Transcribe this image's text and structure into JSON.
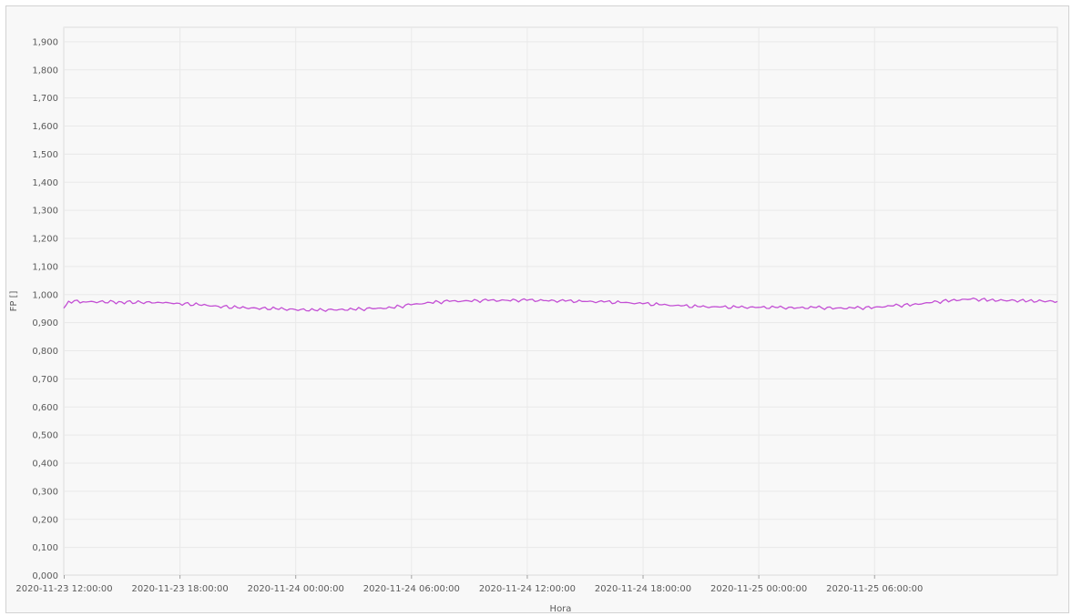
{
  "chart_data": {
    "type": "line",
    "xlabel": "Hora",
    "ylabel": "FP []",
    "ylim": [
      0,
      1.95
    ],
    "y_ticks": [
      "0,000",
      "0,100",
      "0,200",
      "0,300",
      "0,400",
      "0,500",
      "0,600",
      "0,700",
      "0,800",
      "0,900",
      "1,000",
      "1,100",
      "1,200",
      "1,300",
      "1,400",
      "1,500",
      "1,600",
      "1,700",
      "1,800",
      "1,900"
    ],
    "x_ticks": [
      "2020-11-23 12:00:00",
      "2020-11-23 18:00:00",
      "2020-11-24 00:00:00",
      "2020-11-24 06:00:00",
      "2020-11-24 12:00:00",
      "2020-11-24 18:00:00",
      "2020-11-25 00:00:00",
      "2020-11-25 06:00:00"
    ],
    "xlim": [
      "2020-11-23 12:00:00",
      "2020-11-25 15:30:00"
    ],
    "grid": true,
    "colors": {
      "series": "#c34fd4",
      "grid": "#e9e9e9",
      "plot_bg": "#f8f8f8"
    },
    "series": [
      {
        "x": [
          "2020-11-23 12:00:00",
          "2020-11-23 12:15:00",
          "2020-11-23 13:00:00",
          "2020-11-23 15:00:00",
          "2020-11-23 17:00:00",
          "2020-11-23 18:00:00",
          "2020-11-23 19:00:00",
          "2020-11-23 20:00:00",
          "2020-11-23 21:00:00",
          "2020-11-23 22:00:00",
          "2020-11-23 23:00:00",
          "2020-11-24 00:00:00",
          "2020-11-24 01:00:00",
          "2020-11-24 02:00:00",
          "2020-11-24 03:00:00",
          "2020-11-24 04:00:00",
          "2020-11-24 05:00:00",
          "2020-11-24 06:00:00",
          "2020-11-24 07:00:00",
          "2020-11-24 08:00:00",
          "2020-11-24 09:00:00",
          "2020-11-24 10:00:00",
          "2020-11-24 11:00:00",
          "2020-11-24 12:00:00",
          "2020-11-24 13:00:00",
          "2020-11-24 14:00:00",
          "2020-11-24 15:00:00",
          "2020-11-24 16:00:00",
          "2020-11-24 17:00:00",
          "2020-11-24 18:00:00",
          "2020-11-24 19:00:00",
          "2020-11-24 20:00:00",
          "2020-11-24 21:00:00",
          "2020-11-24 22:00:00",
          "2020-11-24 23:00:00",
          "2020-11-25 00:00:00",
          "2020-11-25 01:00:00",
          "2020-11-25 02:00:00",
          "2020-11-25 03:00:00",
          "2020-11-25 04:00:00",
          "2020-11-25 05:00:00",
          "2020-11-25 06:00:00",
          "2020-11-25 07:00:00",
          "2020-11-25 08:00:00",
          "2020-11-25 09:00:00",
          "2020-11-25 10:00:00",
          "2020-11-25 11:00:00",
          "2020-11-25 12:00:00",
          "2020-11-25 13:00:00",
          "2020-11-25 14:00:00",
          "2020-11-25 15:00:00",
          "2020-11-25 15:30:00"
        ],
        "values": [
          0.95,
          0.975,
          0.973,
          0.972,
          0.97,
          0.967,
          0.962,
          0.957,
          0.952,
          0.95,
          0.948,
          0.945,
          0.943,
          0.944,
          0.946,
          0.948,
          0.952,
          0.962,
          0.97,
          0.974,
          0.976,
          0.977,
          0.978,
          0.978,
          0.977,
          0.975,
          0.974,
          0.972,
          0.97,
          0.966,
          0.962,
          0.958,
          0.955,
          0.954,
          0.953,
          0.953,
          0.952,
          0.951,
          0.952,
          0.95,
          0.95,
          0.953,
          0.958,
          0.963,
          0.97,
          0.978,
          0.982,
          0.979,
          0.977,
          0.976,
          0.975,
          0.974
        ]
      }
    ]
  }
}
